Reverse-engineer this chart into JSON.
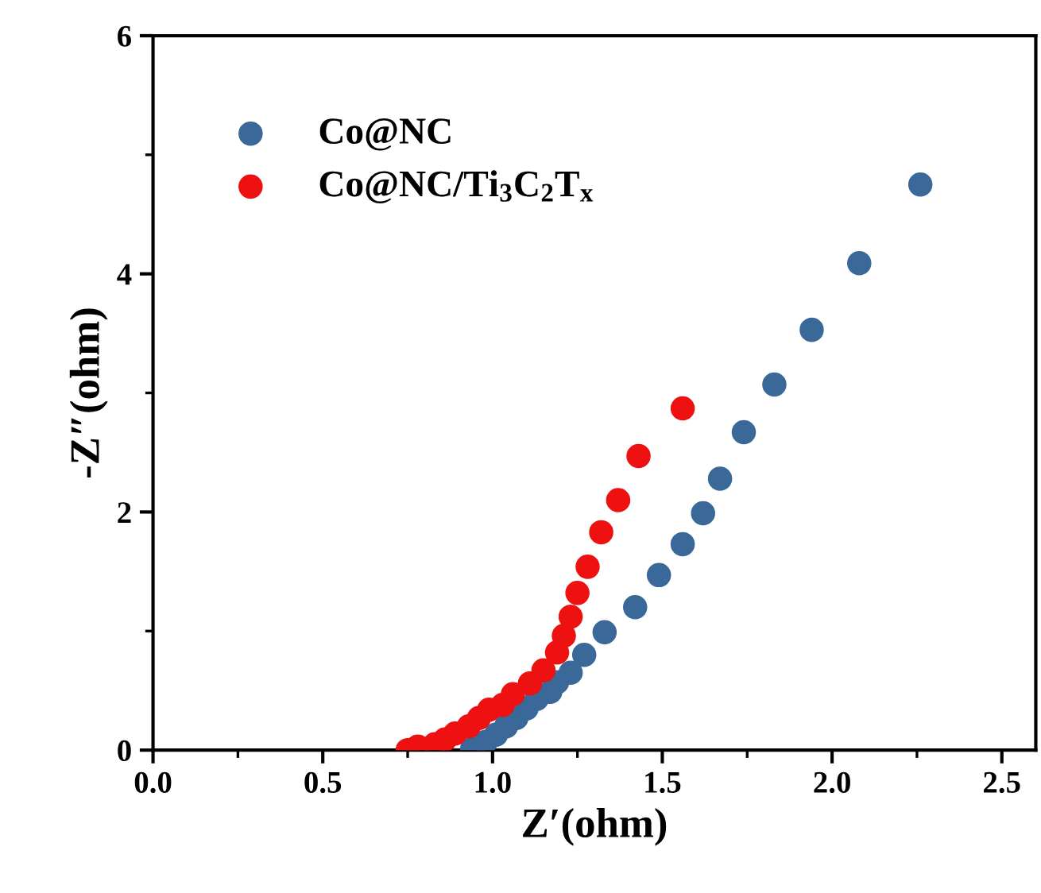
{
  "chart_data": {
    "type": "scatter",
    "xlabel": "Z′(ohm)",
    "ylabel": "-Z″(ohm)",
    "xlim": [
      0,
      2.6
    ],
    "ylim": [
      0,
      6
    ],
    "xticks": [
      {
        "value": 0,
        "label": "0.0"
      },
      0.5,
      {
        "value": 1,
        "label": "1.0"
      },
      1.5,
      {
        "value": 2,
        "label": "2.0"
      },
      2.5
    ],
    "yticks": [
      0,
      2,
      4,
      6
    ],
    "grid": false,
    "legend": "top left",
    "marker": "circle",
    "series": [
      {
        "name": "Co@NC",
        "color": "#3a6899",
        "x": [
          0.94,
          0.98,
          1.01,
          1.04,
          1.07,
          1.1,
          1.13,
          1.17,
          1.19,
          1.23,
          1.27,
          1.33,
          1.42,
          1.49,
          1.56,
          1.62,
          1.67,
          1.74,
          1.83,
          1.94,
          2.08,
          2.26
        ],
        "values": [
          0.01,
          0.07,
          0.13,
          0.2,
          0.27,
          0.35,
          0.43,
          0.49,
          0.57,
          0.65,
          0.8,
          0.99,
          1.2,
          1.47,
          1.73,
          1.99,
          2.28,
          2.67,
          3.07,
          3.53,
          4.09,
          4.75
        ]
      },
      {
        "name": "Co@NC/Ti$_{3}$C$_{2}$T$_{x}$",
        "color": "#ee1111",
        "x": [
          0.75,
          0.78,
          0.83,
          0.86,
          0.89,
          0.93,
          0.96,
          0.99,
          1.03,
          1.06,
          1.11,
          1.15,
          1.19,
          1.21,
          1.23,
          1.25,
          1.28,
          1.32,
          1.37,
          1.43,
          1.56
        ],
        "values": [
          0.0,
          0.03,
          0.05,
          0.09,
          0.14,
          0.2,
          0.27,
          0.34,
          0.38,
          0.47,
          0.56,
          0.67,
          0.82,
          0.96,
          1.12,
          1.32,
          1.54,
          1.83,
          2.1,
          2.47,
          2.87
        ]
      }
    ]
  }
}
